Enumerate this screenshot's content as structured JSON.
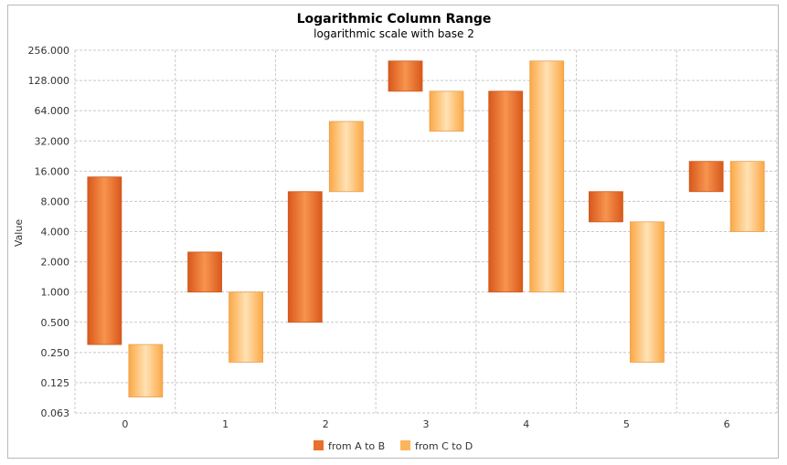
{
  "chart_data": {
    "type": "bar",
    "title": "Logarithmic Column Range",
    "subtitle": "logarithmic scale with base 2",
    "ylabel": "Value",
    "xlabel": "",
    "y_scale": "log2",
    "ylim": [
      0.0625,
      256
    ],
    "y_ticks": [
      0.0625,
      0.125,
      0.25,
      0.5,
      1,
      2,
      4,
      8,
      16,
      32,
      64,
      128,
      256
    ],
    "y_tick_labels": [
      "0.063",
      "0.125",
      "0.250",
      "0.500",
      "1.000",
      "2.000",
      "4.000",
      "8.000",
      "16.000",
      "32.000",
      "64.000",
      "128.000",
      "256.000"
    ],
    "categories": [
      "0",
      "1",
      "2",
      "3",
      "4",
      "5",
      "6"
    ],
    "grid": true,
    "legend_position": "bottom-center",
    "series": [
      {
        "name": "from A to B",
        "color": "#e8702a",
        "ranges": [
          [
            0.3,
            14
          ],
          [
            1,
            2.5
          ],
          [
            0.5,
            10
          ],
          [
            100,
            200
          ],
          [
            1,
            100
          ],
          [
            5,
            10
          ],
          [
            10,
            20
          ]
        ]
      },
      {
        "name": "from C to D",
        "color": "#fdb55b",
        "ranges": [
          [
            0.09,
            0.3
          ],
          [
            0.2,
            1
          ],
          [
            10,
            50
          ],
          [
            40,
            100
          ],
          [
            1,
            200
          ],
          [
            0.2,
            5
          ],
          [
            4,
            20
          ]
        ]
      }
    ]
  }
}
